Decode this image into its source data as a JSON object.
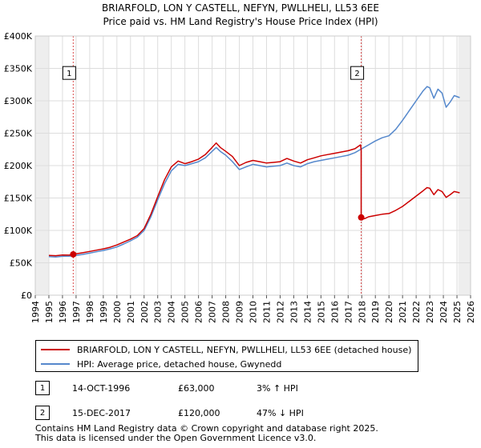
{
  "chart_data": {
    "type": "line",
    "title": "BRIARFOLD, LON Y CASTELL, NEFYN, PWLLHELI, LL53 6EE",
    "subtitle": "Price paid vs. HM Land Registry's House Price Index (HPI)",
    "xlabel": "",
    "ylabel": "",
    "xlim": [
      1994,
      2026
    ],
    "ylim": [
      0,
      400000
    ],
    "grid": true,
    "x_ticks": [
      "1994",
      "1995",
      "1996",
      "1997",
      "1998",
      "1999",
      "2000",
      "2001",
      "2002",
      "2003",
      "2004",
      "2005",
      "2006",
      "2007",
      "2008",
      "2009",
      "2010",
      "2011",
      "2012",
      "2013",
      "2014",
      "2015",
      "2016",
      "2017",
      "2018",
      "2019",
      "2020",
      "2021",
      "2022",
      "2023",
      "2024",
      "2025",
      "2026"
    ],
    "y_ticks": [
      {
        "value": 0,
        "label": "£0"
      },
      {
        "value": 50000,
        "label": "£50K"
      },
      {
        "value": 100000,
        "label": "£100K"
      },
      {
        "value": 150000,
        "label": "£150K"
      },
      {
        "value": 200000,
        "label": "£200K"
      },
      {
        "value": 250000,
        "label": "£250K"
      },
      {
        "value": 300000,
        "label": "£300K"
      },
      {
        "value": 350000,
        "label": "£350K"
      },
      {
        "value": 400000,
        "label": "£400K"
      }
    ],
    "shaded_ranges": [
      [
        1994,
        1995
      ],
      [
        2025.1,
        2026
      ]
    ],
    "series": [
      {
        "name": "BRIARFOLD, LON Y CASTELL, NEFYN, PWLLHELI, LL53 6EE (detached house)",
        "color": "#cc0000",
        "points": [
          [
            1995.0,
            61500
          ],
          [
            1995.5,
            61000
          ],
          [
            1996.0,
            62000
          ],
          [
            1996.5,
            61800
          ],
          [
            1996.79,
            63000
          ],
          [
            1997.0,
            64000
          ],
          [
            1997.5,
            65500
          ],
          [
            1998.0,
            67500
          ],
          [
            1998.5,
            69500
          ],
          [
            1999.0,
            71500
          ],
          [
            1999.5,
            74000
          ],
          [
            2000.0,
            77500
          ],
          [
            2000.5,
            82000
          ],
          [
            2001.0,
            86500
          ],
          [
            2001.5,
            92000
          ],
          [
            2002.0,
            103000
          ],
          [
            2002.5,
            125000
          ],
          [
            2003.0,
            152000
          ],
          [
            2003.5,
            178000
          ],
          [
            2004.0,
            198000
          ],
          [
            2004.5,
            207000
          ],
          [
            2005.0,
            203000
          ],
          [
            2005.5,
            206000
          ],
          [
            2006.0,
            210000
          ],
          [
            2006.5,
            217000
          ],
          [
            2007.0,
            228000
          ],
          [
            2007.3,
            235000
          ],
          [
            2007.6,
            228000
          ],
          [
            2008.0,
            222000
          ],
          [
            2008.5,
            214000
          ],
          [
            2009.0,
            200000
          ],
          [
            2009.5,
            205000
          ],
          [
            2010.0,
            208000
          ],
          [
            2010.5,
            206000
          ],
          [
            2011.0,
            204000
          ],
          [
            2011.5,
            205000
          ],
          [
            2012.0,
            206000
          ],
          [
            2012.5,
            211000
          ],
          [
            2013.0,
            207000
          ],
          [
            2013.5,
            204000
          ],
          [
            2014.0,
            209000
          ],
          [
            2014.5,
            212000
          ],
          [
            2015.0,
            215000
          ],
          [
            2015.5,
            217000
          ],
          [
            2016.0,
            219000
          ],
          [
            2016.5,
            221000
          ],
          [
            2017.0,
            223000
          ],
          [
            2017.5,
            226000
          ],
          [
            2017.9,
            232000
          ],
          [
            2017.955,
            225000
          ],
          [
            2017.958,
            122000
          ],
          [
            2017.96,
            120000
          ],
          [
            2018.2,
            118000
          ],
          [
            2018.5,
            121000
          ],
          [
            2019.0,
            123000
          ],
          [
            2019.5,
            125000
          ],
          [
            2020.0,
            126000
          ],
          [
            2020.5,
            131000
          ],
          [
            2021.0,
            137000
          ],
          [
            2021.5,
            145000
          ],
          [
            2022.0,
            153000
          ],
          [
            2022.5,
            161000
          ],
          [
            2022.8,
            166000
          ],
          [
            2023.0,
            165000
          ],
          [
            2023.3,
            155000
          ],
          [
            2023.6,
            163000
          ],
          [
            2023.9,
            160000
          ],
          [
            2024.2,
            151000
          ],
          [
            2024.5,
            155000
          ],
          [
            2024.8,
            160000
          ],
          [
            2025.2,
            158000
          ]
        ]
      },
      {
        "name": "HPI: Average price, detached house, Gwynedd",
        "color": "#5588cc",
        "points": [
          [
            1995.0,
            59500
          ],
          [
            1995.5,
            59000
          ],
          [
            1996.0,
            60000
          ],
          [
            1996.5,
            60200
          ],
          [
            1997.0,
            61500
          ],
          [
            1997.5,
            63000
          ],
          [
            1998.0,
            65000
          ],
          [
            1998.5,
            67000
          ],
          [
            1999.0,
            69000
          ],
          [
            1999.5,
            71500
          ],
          [
            2000.0,
            74500
          ],
          [
            2000.5,
            79000
          ],
          [
            2001.0,
            84000
          ],
          [
            2001.5,
            89500
          ],
          [
            2002.0,
            100000
          ],
          [
            2002.5,
            121000
          ],
          [
            2003.0,
            147000
          ],
          [
            2003.5,
            172000
          ],
          [
            2004.0,
            192000
          ],
          [
            2004.5,
            202000
          ],
          [
            2005.0,
            200000
          ],
          [
            2005.5,
            203000
          ],
          [
            2006.0,
            206000
          ],
          [
            2006.5,
            212000
          ],
          [
            2007.0,
            222000
          ],
          [
            2007.3,
            228000
          ],
          [
            2007.6,
            222000
          ],
          [
            2008.0,
            216000
          ],
          [
            2008.5,
            206000
          ],
          [
            2009.0,
            194000
          ],
          [
            2009.5,
            198000
          ],
          [
            2010.0,
            202000
          ],
          [
            2010.5,
            200000
          ],
          [
            2011.0,
            198000
          ],
          [
            2011.5,
            199000
          ],
          [
            2012.0,
            200000
          ],
          [
            2012.5,
            204000
          ],
          [
            2013.0,
            200000
          ],
          [
            2013.5,
            198000
          ],
          [
            2014.0,
            203000
          ],
          [
            2014.5,
            206000
          ],
          [
            2015.0,
            208000
          ],
          [
            2015.5,
            210000
          ],
          [
            2016.0,
            212000
          ],
          [
            2016.5,
            214000
          ],
          [
            2017.0,
            216000
          ],
          [
            2017.5,
            220000
          ],
          [
            2018.0,
            226000
          ],
          [
            2018.5,
            232000
          ],
          [
            2019.0,
            238000
          ],
          [
            2019.5,
            243000
          ],
          [
            2020.0,
            246000
          ],
          [
            2020.5,
            256000
          ],
          [
            2021.0,
            270000
          ],
          [
            2021.5,
            285000
          ],
          [
            2022.0,
            300000
          ],
          [
            2022.5,
            315000
          ],
          [
            2022.8,
            322000
          ],
          [
            2023.0,
            320000
          ],
          [
            2023.3,
            304000
          ],
          [
            2023.6,
            318000
          ],
          [
            2023.9,
            312000
          ],
          [
            2024.2,
            290000
          ],
          [
            2024.5,
            298000
          ],
          [
            2024.8,
            308000
          ],
          [
            2025.2,
            305000
          ]
        ]
      }
    ],
    "sales": [
      {
        "id": "1",
        "x": 1996.79,
        "price": 63000
      },
      {
        "id": "2",
        "x": 2017.96,
        "price": 120000
      }
    ],
    "marker_labels": [
      {
        "id": "1",
        "x": 1996.79,
        "y": 343000
      },
      {
        "id": "2",
        "x": 2017.96,
        "y": 343000
      }
    ]
  },
  "legend": {
    "property_label": "BRIARFOLD, LON Y CASTELL, NEFYN, PWLLHELI, LL53 6EE (detached house)",
    "hpi_label": "HPI: Average price, detached house, Gwynedd",
    "property_color": "#cc0000",
    "hpi_color": "#5588cc"
  },
  "sales_table": [
    {
      "id": "1",
      "date": "14-OCT-1996",
      "price": "£63,000",
      "hpi": "3% ↑ HPI"
    },
    {
      "id": "2",
      "date": "15-DEC-2017",
      "price": "£120,000",
      "hpi": "47% ↓ HPI"
    }
  ],
  "footer": {
    "line1": "Contains HM Land Registry data © Crown copyright and database right 2025.",
    "line2": "This data is licensed under the Open Government Licence v3.0."
  }
}
